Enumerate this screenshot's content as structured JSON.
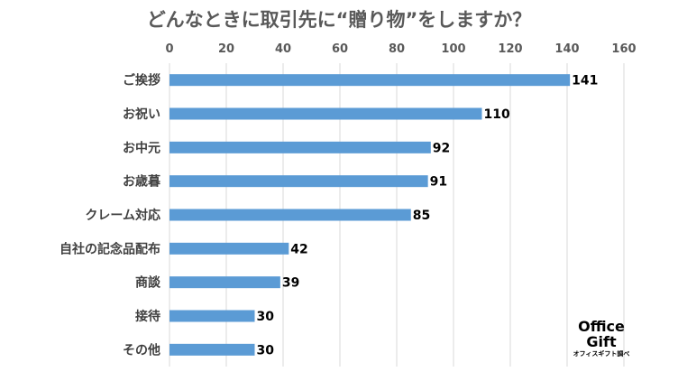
{
  "chart_data": {
    "type": "bar",
    "orientation": "horizontal",
    "title": "どんなときに取引先に“贈り物”をしますか？",
    "categories": [
      "ご挨拶",
      "お祝い",
      "お中元",
      "お歳暮",
      "クレーム対応",
      "自社の記念品配布",
      "商談",
      "接待",
      "その他"
    ],
    "values": [
      141,
      110,
      92,
      91,
      85,
      42,
      39,
      30,
      30
    ],
    "xlim": [
      0,
      160
    ],
    "xticks": [
      0,
      20,
      40,
      60,
      80,
      100,
      120,
      140,
      160
    ],
    "axis_position": "top",
    "grid": true,
    "legend": "none",
    "data_labels": true,
    "bar_color": "#5b9bd5"
  },
  "logo": {
    "line1": "Office",
    "line2": "Gift",
    "line3": "オフィスギフト調べ"
  }
}
